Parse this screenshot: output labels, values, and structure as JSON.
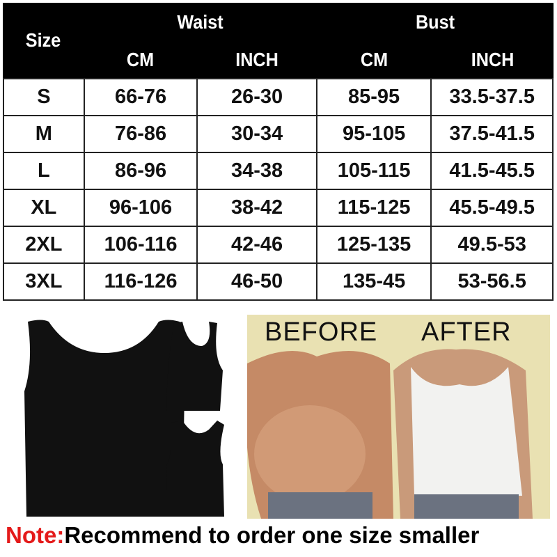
{
  "table": {
    "header": {
      "size": "Size",
      "waist": "Waist",
      "bust": "Bust",
      "cm": "CM",
      "inch": "INCH"
    },
    "rows": [
      [
        "S",
        "66-76",
        "26-30",
        "85-95",
        "33.5-37.5"
      ],
      [
        "M",
        "76-86",
        "30-34",
        "95-105",
        "37.5-41.5"
      ],
      [
        "L",
        "86-96",
        "34-38",
        "105-115",
        "41.5-45.5"
      ],
      [
        "XL",
        "96-106",
        "38-42",
        "115-125",
        "45.5-49.5"
      ],
      [
        "2XL",
        "106-116",
        "42-46",
        "125-135",
        "49.5-53"
      ],
      [
        "3XL",
        "116-126",
        "46-50",
        "135-45",
        "53-56.5"
      ]
    ]
  },
  "photo": {
    "before": "BEFORE",
    "after": "AFTER"
  },
  "note": {
    "label": "Note:",
    "text": "Recommend to order one size smaller",
    "label_color": "#e41a1a"
  }
}
